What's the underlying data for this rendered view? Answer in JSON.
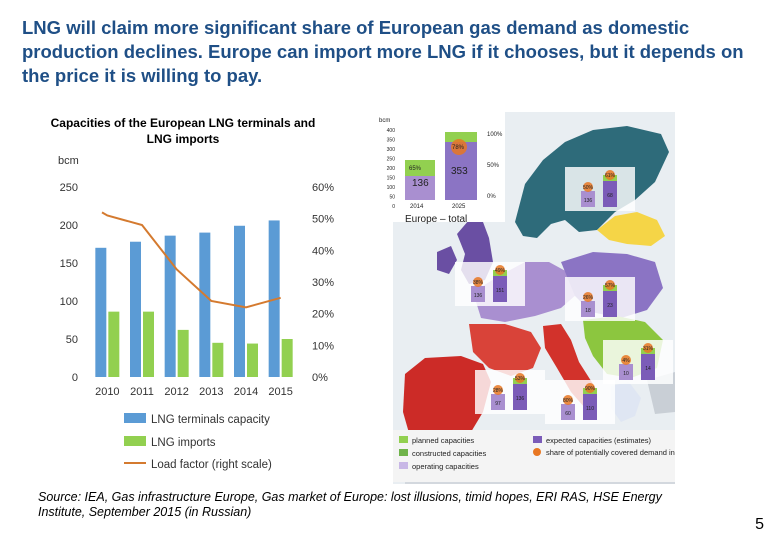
{
  "headline": "LNG will claim more significant share of European gas demand as domestic production declines. Europe can import more LNG if it chooses, but it depends on the price it is willing to pay.",
  "chart_title": "Capacities of the European LNG terminals and LNG imports",
  "source": "Source: IEA, Gas infrastructure Europe, Gas market of Europe: lost illusions, timid hopes, ERI RAS, HSE Energy Institute, September 2015 (in Russian)",
  "page_number": "5",
  "colors": {
    "capacity": "#5b9bd5",
    "imports": "#92d050",
    "load_factor": "#d47a2f",
    "headline": "#1f4f86"
  },
  "chart_data": {
    "type": "bar",
    "title": "Capacities of the European LNG terminals and LNG imports",
    "categories": [
      "2010",
      "2011",
      "2012",
      "2013",
      "2014",
      "2015"
    ],
    "ylabel": "bcm",
    "y_ticks": [
      "0",
      "50",
      "100",
      "150",
      "200",
      "250"
    ],
    "ylim": [
      0,
      250
    ],
    "y2_ticks": [
      "0%",
      "10%",
      "20%",
      "30%",
      "40%",
      "50%",
      "60%"
    ],
    "y2lim": [
      0,
      0.6
    ],
    "series": [
      {
        "name": "LNG terminals capacity",
        "type": "bar",
        "axis": "left",
        "values": [
          170,
          178,
          186,
          190,
          199,
          206
        ]
      },
      {
        "name": "LNG imports",
        "type": "bar",
        "axis": "left",
        "values": [
          86,
          86,
          62,
          45,
          44,
          50
        ]
      },
      {
        "name": "Load factor (right scale)",
        "type": "line",
        "axis": "right",
        "values": [
          0.51,
          0.48,
          0.34,
          0.24,
          0.22,
          0.25
        ]
      }
    ]
  },
  "map": {
    "region_label": "Europe – total",
    "total_chart": {
      "unit": "bcm",
      "ticks": [
        "400",
        "350",
        "300",
        "250",
        "200",
        "150",
        "100",
        "50",
        "0"
      ],
      "pct_ticks": [
        "100%",
        "50%",
        "0%"
      ],
      "years": [
        "2014",
        "2025"
      ],
      "values": [
        "136",
        "353"
      ],
      "shares": [
        "65%",
        "78%"
      ]
    },
    "legend": [
      "planned capacities",
      "constructed capacities",
      "operating capacities",
      "expected capacities (estimates)",
      "share of potentially covered demand in a region"
    ],
    "regions": [
      {
        "name": "north",
        "values": [
          "136",
          "68"
        ],
        "shares": [
          "50%",
          "61%"
        ]
      },
      {
        "name": "northwest",
        "values": [
          "136",
          "151"
        ],
        "shares": [
          "38%",
          "49%"
        ]
      },
      {
        "name": "central",
        "values": [
          "18",
          "23"
        ],
        "shares": [
          "26%",
          "57%"
        ]
      },
      {
        "name": "southeast",
        "values": [
          "10",
          "14"
        ],
        "shares": [
          "4%",
          "31%"
        ]
      },
      {
        "name": "italy",
        "values": [
          "97",
          "136"
        ],
        "shares": [
          "28%",
          "53%"
        ]
      },
      {
        "name": "iberia",
        "values": [
          "60",
          "110"
        ],
        "shares": [
          "80%",
          "90%"
        ]
      }
    ]
  }
}
